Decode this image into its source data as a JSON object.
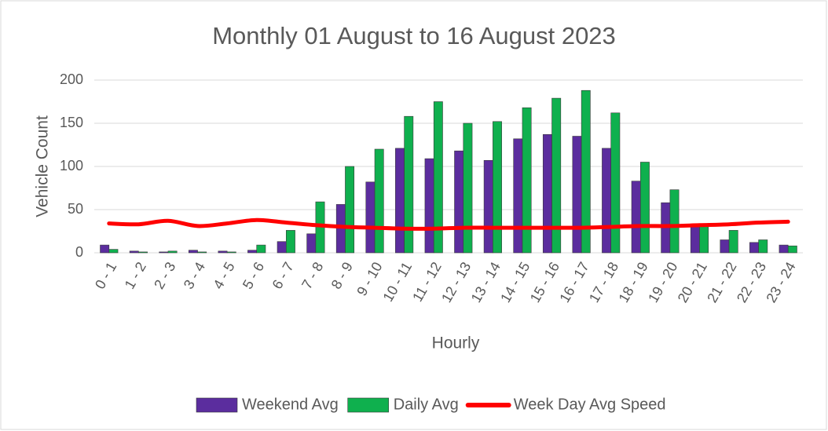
{
  "chart_data": {
    "type": "bar",
    "title": "Monthly 01 August to 16 August 2023",
    "x_label": "Hourly",
    "y_label": "Vehicle Count",
    "categories": [
      "0 - 1",
      "1 - 2",
      "2 - 3",
      "3 - 4",
      "4 - 5",
      "5 - 6",
      "6 - 7",
      "7 - 8",
      "8 - 9",
      "9 - 10",
      "10 - 11",
      "11 - 12",
      "12 - 13",
      "13 - 14",
      "14 - 15",
      "15 - 16",
      "16 - 17",
      "17 - 18",
      "18 - 19",
      "19 - 20",
      "20 - 21",
      "21 - 22",
      "22 - 23",
      "23 - 24"
    ],
    "series": [
      {
        "name": "Weekend Avg",
        "type": "bar",
        "color": "#5b2d9e",
        "values": [
          9,
          2,
          1,
          3,
          2,
          3,
          13,
          22,
          56,
          82,
          121,
          109,
          118,
          107,
          132,
          137,
          135,
          121,
          83,
          58,
          30,
          15,
          12,
          9
        ]
      },
      {
        "name": "Daily Avg",
        "type": "bar",
        "color": "#0fb04e",
        "values": [
          4,
          1,
          2,
          1,
          1,
          9,
          26,
          59,
          100,
          120,
          158,
          175,
          150,
          152,
          168,
          179,
          188,
          162,
          105,
          73,
          31,
          26,
          15,
          8
        ]
      },
      {
        "name": "Week Day Avg Speed",
        "type": "line",
        "color": "#ff0000",
        "values": [
          34,
          33,
          37,
          31,
          34,
          38,
          35,
          32,
          30,
          29,
          28,
          28,
          29,
          29,
          29,
          29,
          29,
          30,
          31,
          31,
          32,
          33,
          35,
          36
        ]
      }
    ],
    "ylim": [
      0,
      200
    ],
    "yticks": [
      0,
      50,
      100,
      150,
      200
    ],
    "grid": true,
    "legend": "bottom"
  }
}
